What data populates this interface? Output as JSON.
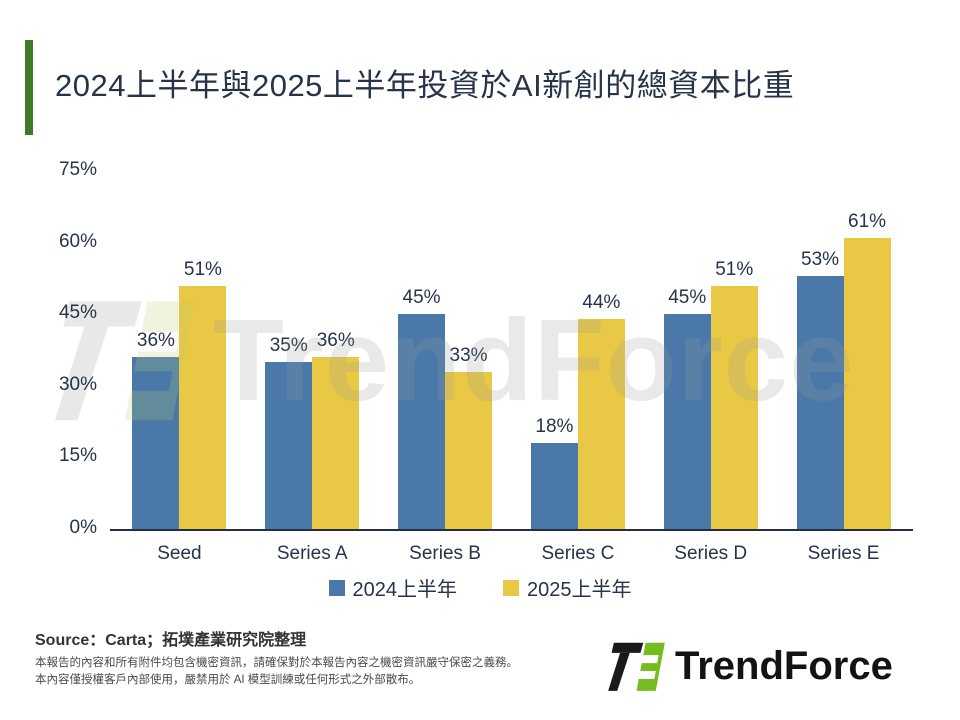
{
  "title": "2024上半年與2025上半年投資於AI新創的總資本比重",
  "accent_color": "#3E7A28",
  "chart_data": {
    "type": "bar",
    "title": "2024上半年與2025上半年投資於AI新創的總資本比重",
    "categories": [
      "Seed",
      "Series A",
      "Series B",
      "Series C",
      "Series D",
      "Series E"
    ],
    "series": [
      {
        "key": "2024-h1",
        "name": "2024上半年",
        "color": "#4A79A9",
        "values": [
          36,
          35,
          45,
          18,
          45,
          53
        ]
      },
      {
        "key": "2025-h1",
        "name": "2025上半年",
        "color": "#E9C845",
        "values": [
          51,
          36,
          33,
          44,
          51,
          61
        ]
      }
    ],
    "value_suffix": "%",
    "ylim": [
      0,
      75
    ],
    "yticks": [
      {
        "value": 0,
        "label": "0%"
      },
      {
        "value": 15,
        "label": "15%"
      },
      {
        "value": 30,
        "label": "30%"
      },
      {
        "value": 45,
        "label": "45%"
      },
      {
        "value": 60,
        "label": "60%"
      },
      {
        "value": 75,
        "label": "75%"
      }
    ],
    "grid": false,
    "legend_position": "bottom"
  },
  "watermark": {
    "text": "TrendForce"
  },
  "footer": {
    "source": "Source：Carta；拓墣產業研究院整理",
    "disclaimer_line1": "本報告的內容和所有附件均包含機密資訊，請確保對於本報告內容之機密資訊嚴守保密之義務。",
    "disclaimer_line2": "本內容僅授權客戶內部使用，嚴禁用於 AI 模型訓練或任何形式之外部散布。",
    "logo_text": "TrendForce"
  },
  "logo_colors": {
    "dark": "#1A1A1A",
    "green": "#76BC21"
  }
}
